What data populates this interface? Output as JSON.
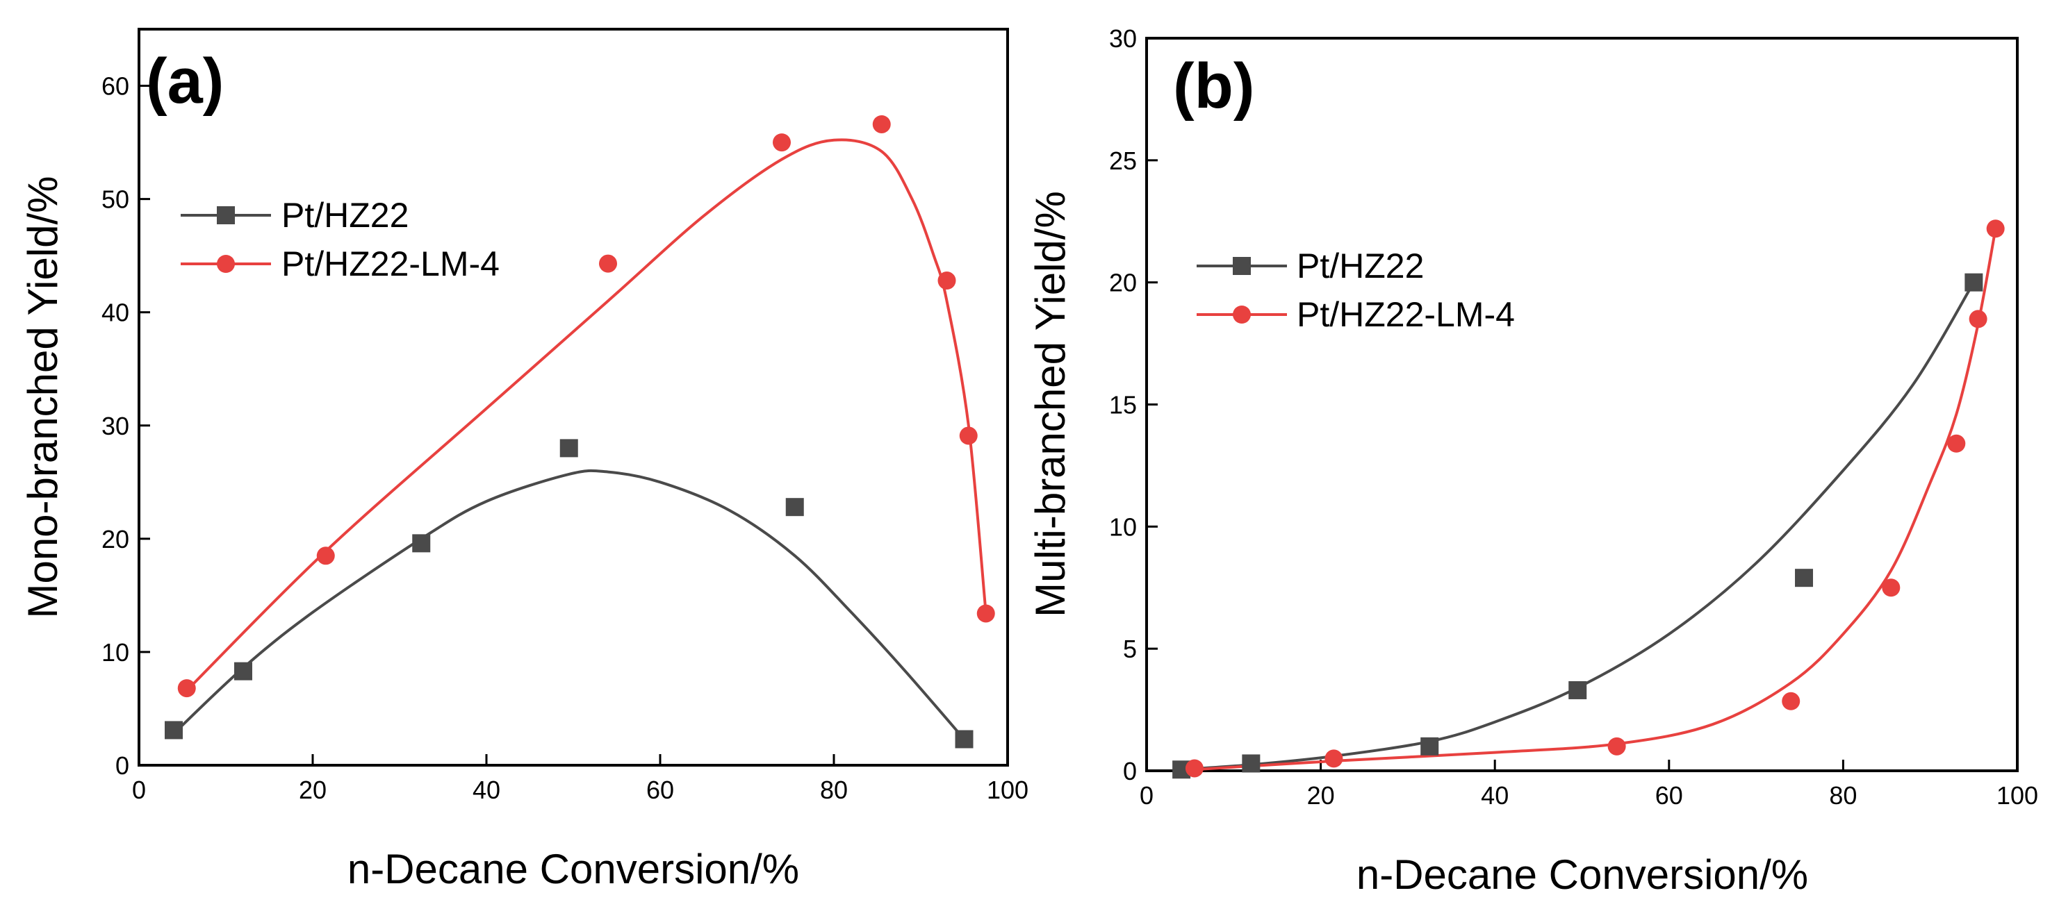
{
  "chart_data": [
    {
      "type": "scatter",
      "panel_label": "(a)",
      "xlabel": "n-Decane Conversion/%",
      "ylabel": "Mono-branched Yield/%",
      "xlim": [
        0,
        100
      ],
      "ylim": [
        0,
        65
      ],
      "xticks": [
        0,
        20,
        40,
        60,
        80,
        100
      ],
      "yticks": [
        0,
        10,
        20,
        30,
        40,
        50,
        60
      ],
      "legend_position": "center-left",
      "series": [
        {
          "name": "Pt/HZ22",
          "color": "#4a4a4a",
          "marker": "square",
          "x": [
            4,
            12,
            32.5,
            49.5,
            75.5,
            95
          ],
          "y": [
            3.1,
            8.3,
            19.6,
            28,
            22.8,
            2.3
          ],
          "fit_x": [
            4,
            12,
            20,
            32.5,
            40,
            49.5,
            54,
            60,
            68,
            75.5,
            82,
            88,
            95
          ],
          "fit_y": [
            2.8,
            8.6,
            13.5,
            20.0,
            23.3,
            25.7,
            25.9,
            25.0,
            22.5,
            18.5,
            13.5,
            8.5,
            2.3
          ]
        },
        {
          "name": "Pt/HZ22-LM-4",
          "color": "#e8413f",
          "marker": "circle",
          "x": [
            5.5,
            21.5,
            54,
            74,
            85.5,
            93,
            95.5,
            97.5
          ],
          "y": [
            6.8,
            18.5,
            44.3,
            55,
            56.6,
            42.8,
            29.1,
            13.4
          ],
          "fit_x": [
            5.5,
            21.5,
            40,
            54,
            65,
            74,
            80,
            85.5,
            89,
            91.5,
            93,
            95.5,
            97.5
          ],
          "fit_y": [
            6.6,
            18.9,
            31.5,
            41.0,
            48.5,
            53.5,
            55.2,
            54.2,
            50.0,
            45.0,
            41.0,
            30.0,
            13.4
          ]
        }
      ]
    },
    {
      "type": "scatter",
      "panel_label": "(b)",
      "xlabel": "n-Decane Conversion/%",
      "ylabel": "Multi-branched Yield/%",
      "xlim": [
        0,
        100
      ],
      "ylim": [
        0,
        30
      ],
      "xticks": [
        0,
        20,
        40,
        60,
        80,
        100
      ],
      "yticks": [
        0,
        5,
        10,
        15,
        20,
        25,
        30
      ],
      "legend_position": "center-left",
      "series": [
        {
          "name": "Pt/HZ22",
          "color": "#4a4a4a",
          "marker": "square",
          "x": [
            4,
            12,
            32.5,
            49.5,
            75.5,
            95
          ],
          "y": [
            0.05,
            0.3,
            1.0,
            3.3,
            7.9,
            20.0
          ],
          "fit_x": [
            4,
            12,
            21.5,
            32.5,
            40,
            49.5,
            60,
            70,
            80,
            88,
            95
          ],
          "fit_y": [
            0.05,
            0.25,
            0.6,
            1.2,
            2.0,
            3.4,
            5.6,
            8.5,
            12.3,
            15.8,
            20.0
          ]
        },
        {
          "name": "Pt/HZ22-LM-4",
          "color": "#e8413f",
          "marker": "circle",
          "x": [
            5.5,
            21.5,
            54,
            74,
            85.5,
            93,
            95.5,
            97.5
          ],
          "y": [
            0.1,
            0.5,
            1.0,
            2.85,
            7.5,
            13.4,
            18.5,
            22.2
          ],
          "fit_x": [
            5.5,
            21.5,
            40,
            54,
            65,
            74,
            80,
            85.5,
            90,
            93,
            95.5,
            97.5
          ],
          "fit_y": [
            0.05,
            0.4,
            0.75,
            1.1,
            1.9,
            3.6,
            5.6,
            8.2,
            11.8,
            14.6,
            18.3,
            22.2
          ]
        }
      ]
    }
  ]
}
